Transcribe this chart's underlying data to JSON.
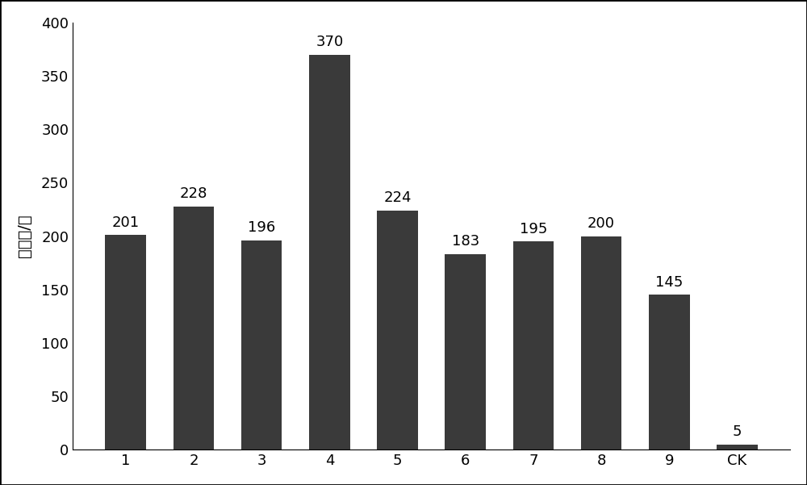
{
  "categories": [
    "1",
    "2",
    "3",
    "4",
    "5",
    "6",
    "7",
    "8",
    "9",
    "CK"
  ],
  "values": [
    201,
    228,
    196,
    370,
    224,
    183,
    195,
    200,
    145,
    5
  ],
  "bar_color": "#3a3a3a",
  "ylabel": "诱捕量/头",
  "ylim": [
    0,
    400
  ],
  "yticks": [
    0,
    50,
    100,
    150,
    200,
    250,
    300,
    350,
    400
  ],
  "bar_width": 0.6,
  "label_fontsize": 13,
  "tick_fontsize": 13,
  "ylabel_fontsize": 14,
  "background_color": "#ffffff",
  "spine_color": "#000000"
}
